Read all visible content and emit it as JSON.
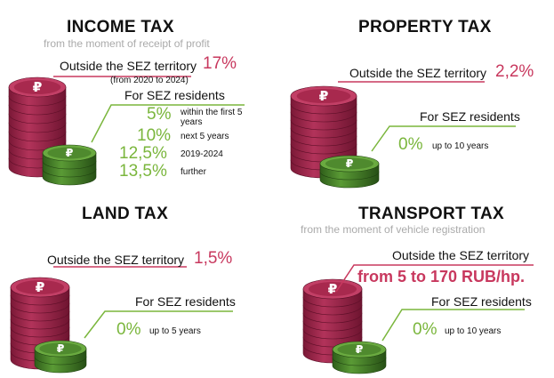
{
  "income": {
    "title": "INCOME TAX",
    "subtitle": "from the moment of receipt of profit",
    "outside_label": "Outside the SEZ territory",
    "outside_value": "17%",
    "outside_note": "(from 2020 to 2024)",
    "sez_label": "For SEZ residents",
    "rates": [
      {
        "value": "5%",
        "note": "within the first 5 years"
      },
      {
        "value": "10%",
        "note": "next 5 years"
      },
      {
        "value": "12,5%",
        "note": "2019-2024"
      },
      {
        "value": "13,5%",
        "note": "further"
      }
    ]
  },
  "property": {
    "title": "PROPERTY TAX",
    "outside_label": "Outside the SEZ territory",
    "outside_value": "2,2%",
    "sez_label": "For SEZ residents",
    "sez_value": "0%",
    "sez_note": "up to 10 years"
  },
  "land": {
    "title": "LAND TAX",
    "outside_label": "Outside the SEZ territory",
    "outside_value": "1,5%",
    "sez_label": "For SEZ residents",
    "sez_value": "0%",
    "sez_note": "up to 5 years"
  },
  "transport": {
    "title": "TRANSPORT TAX",
    "subtitle": "from the moment of vehicle registration",
    "outside_label": "Outside the SEZ territory",
    "outside_value": "from 5 to 170 RUB/hp.",
    "sez_label": "For SEZ residents",
    "sez_value": "0%",
    "sez_note": "up to 10 years"
  },
  "colors": {
    "red_coin": "#a8294e",
    "red_coin_dark": "#7a1836",
    "red_accent": "#c8385e",
    "green_coin": "#4f8a2e",
    "green_coin_dark": "#2f5e1a",
    "green_accent": "#7ab63c"
  },
  "icons": [
    "ruble-coin-stack-icon"
  ]
}
